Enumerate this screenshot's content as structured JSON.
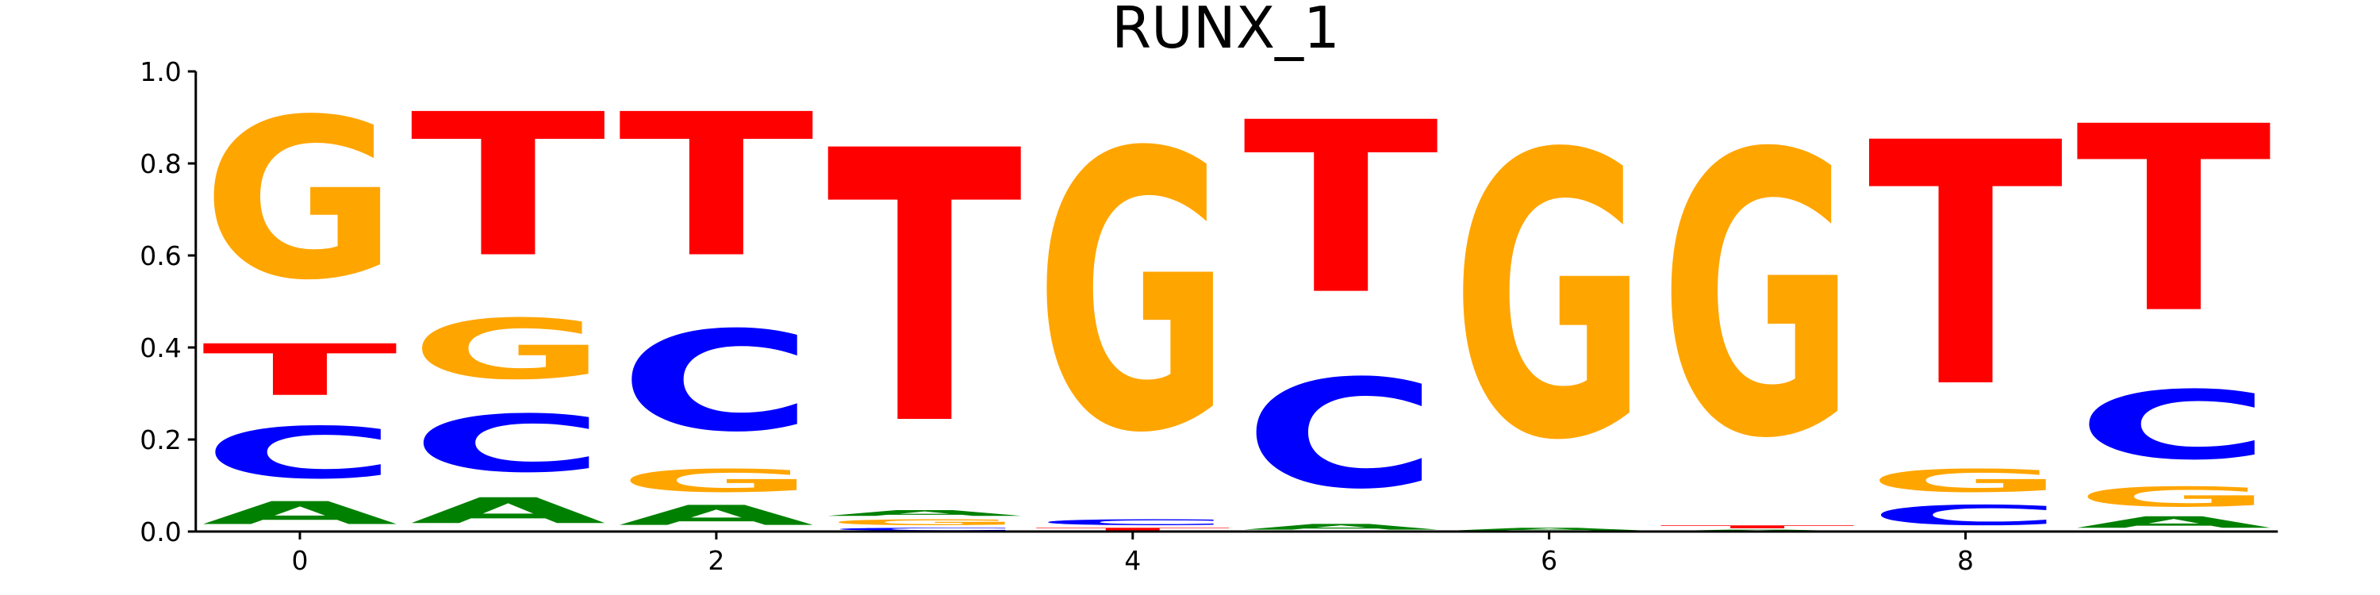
{
  "chart_data": {
    "type": "sequence_logo",
    "title": "RUNX_1",
    "xlabel": "",
    "ylabel": "",
    "ylim": [
      0.0,
      1.0
    ],
    "yticks": [
      "0.0",
      "0.2",
      "0.4",
      "0.6",
      "0.8",
      "1.0"
    ],
    "xticks": [
      "0",
      "2",
      "4",
      "6",
      "8"
    ],
    "xtick_positions": [
      0,
      2,
      4,
      6,
      8
    ],
    "letter_colors": {
      "A": "#008000",
      "C": "#0000ff",
      "G": "#ffa500",
      "T": "#ff0000"
    },
    "positions": [
      {
        "position": 0,
        "stack": [
          {
            "letter": "A",
            "value": 0.08
          },
          {
            "letter": "C",
            "value": 0.18
          },
          {
            "letter": "T",
            "value": 0.18
          },
          {
            "letter": "G",
            "value": 0.56
          }
        ]
      },
      {
        "position": 1,
        "stack": [
          {
            "letter": "A",
            "value": 0.09
          },
          {
            "letter": "C",
            "value": 0.2
          },
          {
            "letter": "G",
            "value": 0.21
          },
          {
            "letter": "T",
            "value": 0.5
          }
        ]
      },
      {
        "position": 2,
        "stack": [
          {
            "letter": "A",
            "value": 0.07
          },
          {
            "letter": "G",
            "value": 0.08
          },
          {
            "letter": "C",
            "value": 0.35
          },
          {
            "letter": "T",
            "value": 0.5
          }
        ]
      },
      {
        "position": 3,
        "stack": [
          {
            "letter": "C",
            "value": 0.01
          },
          {
            "letter": "G",
            "value": 0.02
          },
          {
            "letter": "A",
            "value": 0.02
          },
          {
            "letter": "T",
            "value": 0.95
          }
        ]
      },
      {
        "position": 4,
        "stack": [
          {
            "letter": "T",
            "value": 0.01
          },
          {
            "letter": "C",
            "value": 0.02
          },
          {
            "letter": "G",
            "value": 0.97
          }
        ]
      },
      {
        "position": 5,
        "stack": [
          {
            "letter": "A",
            "value": 0.02
          },
          {
            "letter": "C",
            "value": 0.38
          },
          {
            "letter": "T",
            "value": 0.6
          }
        ]
      },
      {
        "position": 6,
        "stack": [
          {
            "letter": "A",
            "value": 0.01
          },
          {
            "letter": "G",
            "value": 0.99
          }
        ]
      },
      {
        "position": 7,
        "stack": [
          {
            "letter": "A",
            "value": 0.005
          },
          {
            "letter": "T",
            "value": 0.01
          },
          {
            "letter": "G",
            "value": 0.985
          }
        ]
      },
      {
        "position": 8,
        "stack": [
          {
            "letter": "C",
            "value": 0.07
          },
          {
            "letter": "G",
            "value": 0.08
          },
          {
            "letter": "T",
            "value": 0.85
          }
        ]
      },
      {
        "position": 9,
        "stack": [
          {
            "letter": "A",
            "value": 0.04
          },
          {
            "letter": "G",
            "value": 0.07
          },
          {
            "letter": "C",
            "value": 0.24
          },
          {
            "letter": "T",
            "value": 0.65
          }
        ]
      }
    ]
  }
}
